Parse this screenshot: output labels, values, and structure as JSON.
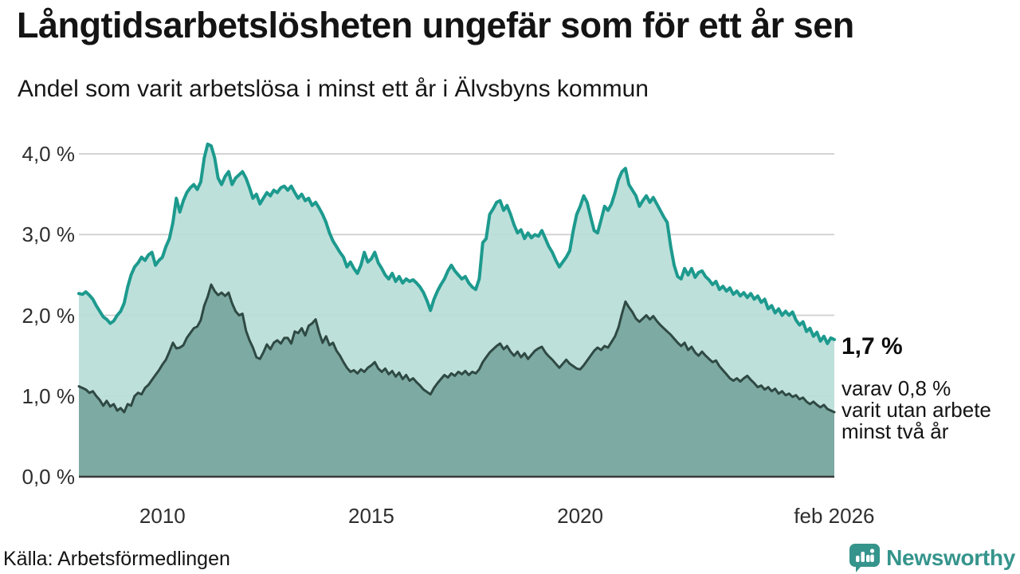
{
  "header": {
    "title": "Långtidsarbetslösheten ungefär som för ett år sen",
    "subtitle": "Andel som varit arbetslösa i minst ett år i Älvsbyns kommun"
  },
  "annotation": {
    "value_label": "1,7 %",
    "sub_label": "varav 0,8 %\nvarit utan arbete\nminst två år"
  },
  "footer": {
    "source": "Källa: Arbetsförmedlingen",
    "brand": "Newsworthy"
  },
  "colors": {
    "line_total": "#1d9a8e",
    "fill_total": "#b9ddd8",
    "line_sub": "#2f4943",
    "fill_sub": "#77a59e",
    "gridline": "#d4d4d4",
    "baseline": "#3a3a3a",
    "brand_teal": "#35948c"
  },
  "chart_data": {
    "type": "area",
    "title": "Långtidsarbetslösheten ungefär som för ett år sen",
    "subtitle": "Andel som varit arbetslösa i minst ett år i Älvsbyns kommun",
    "unit": "%",
    "frequency": "monthly",
    "start_month": "2008-01",
    "end_month": "2026-02",
    "grid": true,
    "ylim": [
      0,
      4.35
    ],
    "yticks": [
      {
        "value": 0,
        "label": "0,0 %"
      },
      {
        "value": 1,
        "label": "1,0 %"
      },
      {
        "value": 2,
        "label": "2,0 %"
      },
      {
        "value": 3,
        "label": "3,0 %"
      },
      {
        "value": 4,
        "label": "4,0 %"
      }
    ],
    "xticks": [
      {
        "label": "2010",
        "year": 2010.0
      },
      {
        "label": "2015",
        "year": 2015.0
      },
      {
        "label": "2020",
        "year": 2020.0
      },
      {
        "label": "feb 2026",
        "year": 2026.083
      }
    ],
    "series": [
      {
        "name": "Arbetslösa minst ett år",
        "end_value": 1.7,
        "end_label": "1,7 %",
        "values": [
          2.27,
          2.26,
          2.29,
          2.25,
          2.2,
          2.12,
          2.05,
          1.98,
          1.95,
          1.9,
          1.93,
          2.0,
          2.05,
          2.15,
          2.35,
          2.5,
          2.6,
          2.65,
          2.72,
          2.68,
          2.75,
          2.78,
          2.62,
          2.68,
          2.72,
          2.85,
          2.95,
          3.15,
          3.45,
          3.28,
          3.42,
          3.52,
          3.58,
          3.62,
          3.56,
          3.65,
          3.95,
          4.12,
          4.1,
          3.95,
          3.7,
          3.62,
          3.72,
          3.78,
          3.62,
          3.7,
          3.74,
          3.78,
          3.7,
          3.58,
          3.45,
          3.5,
          3.38,
          3.45,
          3.52,
          3.48,
          3.55,
          3.52,
          3.58,
          3.6,
          3.55,
          3.6,
          3.52,
          3.45,
          3.5,
          3.42,
          3.45,
          3.36,
          3.4,
          3.33,
          3.25,
          3.15,
          3.02,
          2.92,
          2.85,
          2.78,
          2.72,
          2.6,
          2.66,
          2.58,
          2.52,
          2.62,
          2.78,
          2.66,
          2.7,
          2.78,
          2.65,
          2.58,
          2.5,
          2.45,
          2.52,
          2.42,
          2.48,
          2.4,
          2.45,
          2.42,
          2.44,
          2.4,
          2.35,
          2.28,
          2.18,
          2.06,
          2.2,
          2.3,
          2.38,
          2.45,
          2.55,
          2.62,
          2.55,
          2.5,
          2.45,
          2.48,
          2.4,
          2.35,
          2.32,
          2.45,
          2.9,
          2.95,
          3.25,
          3.32,
          3.4,
          3.42,
          3.3,
          3.36,
          3.25,
          3.12,
          3.02,
          3.06,
          2.95,
          3.02,
          2.96,
          3.0,
          2.98,
          3.05,
          2.95,
          2.85,
          2.78,
          2.68,
          2.6,
          2.66,
          2.72,
          2.8,
          3.05,
          3.25,
          3.35,
          3.48,
          3.4,
          3.22,
          3.05,
          3.02,
          3.18,
          3.35,
          3.3,
          3.38,
          3.52,
          3.68,
          3.78,
          3.82,
          3.62,
          3.55,
          3.48,
          3.35,
          3.42,
          3.48,
          3.4,
          3.46,
          3.38,
          3.3,
          3.22,
          3.15,
          2.85,
          2.62,
          2.48,
          2.45,
          2.58,
          2.5,
          2.58,
          2.47,
          2.53,
          2.55,
          2.48,
          2.44,
          2.38,
          2.42,
          2.32,
          2.36,
          2.3,
          2.34,
          2.26,
          2.3,
          2.24,
          2.28,
          2.22,
          2.27,
          2.2,
          2.24,
          2.16,
          2.2,
          2.08,
          2.12,
          2.03,
          2.08,
          2.0,
          2.05,
          2.0,
          2.04,
          1.94,
          1.88,
          1.92,
          1.8,
          1.84,
          1.74,
          1.79,
          1.68,
          1.74,
          1.65,
          1.72,
          1.7
        ]
      },
      {
        "name": "Varav utan arbete minst två år",
        "end_value": 0.8,
        "end_label": "varav 0,8 % varit utan arbete minst två år",
        "values": [
          1.12,
          1.1,
          1.08,
          1.04,
          1.06,
          1.0,
          0.95,
          0.88,
          0.94,
          0.87,
          0.9,
          0.82,
          0.85,
          0.8,
          0.9,
          0.88,
          1.0,
          1.04,
          1.02,
          1.1,
          1.14,
          1.2,
          1.26,
          1.32,
          1.39,
          1.45,
          1.55,
          1.66,
          1.59,
          1.6,
          1.63,
          1.72,
          1.78,
          1.84,
          1.86,
          1.94,
          2.12,
          2.23,
          2.38,
          2.3,
          2.25,
          2.28,
          2.24,
          2.28,
          2.15,
          2.05,
          2.0,
          2.02,
          1.81,
          1.69,
          1.6,
          1.48,
          1.46,
          1.54,
          1.64,
          1.58,
          1.66,
          1.69,
          1.65,
          1.72,
          1.72,
          1.65,
          1.8,
          1.78,
          1.84,
          1.75,
          1.87,
          1.9,
          1.95,
          1.79,
          1.66,
          1.74,
          1.63,
          1.66,
          1.56,
          1.5,
          1.42,
          1.35,
          1.3,
          1.32,
          1.28,
          1.33,
          1.3,
          1.35,
          1.38,
          1.42,
          1.34,
          1.3,
          1.34,
          1.27,
          1.31,
          1.24,
          1.29,
          1.21,
          1.26,
          1.19,
          1.22,
          1.17,
          1.13,
          1.08,
          1.05,
          1.02,
          1.1,
          1.16,
          1.21,
          1.26,
          1.23,
          1.28,
          1.25,
          1.3,
          1.27,
          1.31,
          1.26,
          1.3,
          1.28,
          1.33,
          1.42,
          1.48,
          1.54,
          1.58,
          1.62,
          1.65,
          1.58,
          1.62,
          1.55,
          1.5,
          1.55,
          1.48,
          1.53,
          1.46,
          1.51,
          1.56,
          1.59,
          1.61,
          1.54,
          1.49,
          1.45,
          1.4,
          1.35,
          1.4,
          1.45,
          1.4,
          1.37,
          1.34,
          1.33,
          1.38,
          1.44,
          1.5,
          1.56,
          1.6,
          1.57,
          1.62,
          1.6,
          1.67,
          1.74,
          1.85,
          2.02,
          2.17,
          2.1,
          2.04,
          1.96,
          1.92,
          1.96,
          2.0,
          1.95,
          1.99,
          1.93,
          1.88,
          1.84,
          1.8,
          1.76,
          1.71,
          1.66,
          1.62,
          1.66,
          1.57,
          1.61,
          1.54,
          1.5,
          1.55,
          1.5,
          1.46,
          1.42,
          1.44,
          1.37,
          1.32,
          1.27,
          1.22,
          1.19,
          1.22,
          1.18,
          1.22,
          1.25,
          1.2,
          1.16,
          1.11,
          1.13,
          1.08,
          1.11,
          1.06,
          1.09,
          1.03,
          1.06,
          1.01,
          1.03,
          0.99,
          1.01,
          0.96,
          0.98,
          0.93,
          0.9,
          0.93,
          0.89,
          0.86,
          0.89,
          0.84,
          0.82,
          0.8
        ]
      }
    ]
  }
}
